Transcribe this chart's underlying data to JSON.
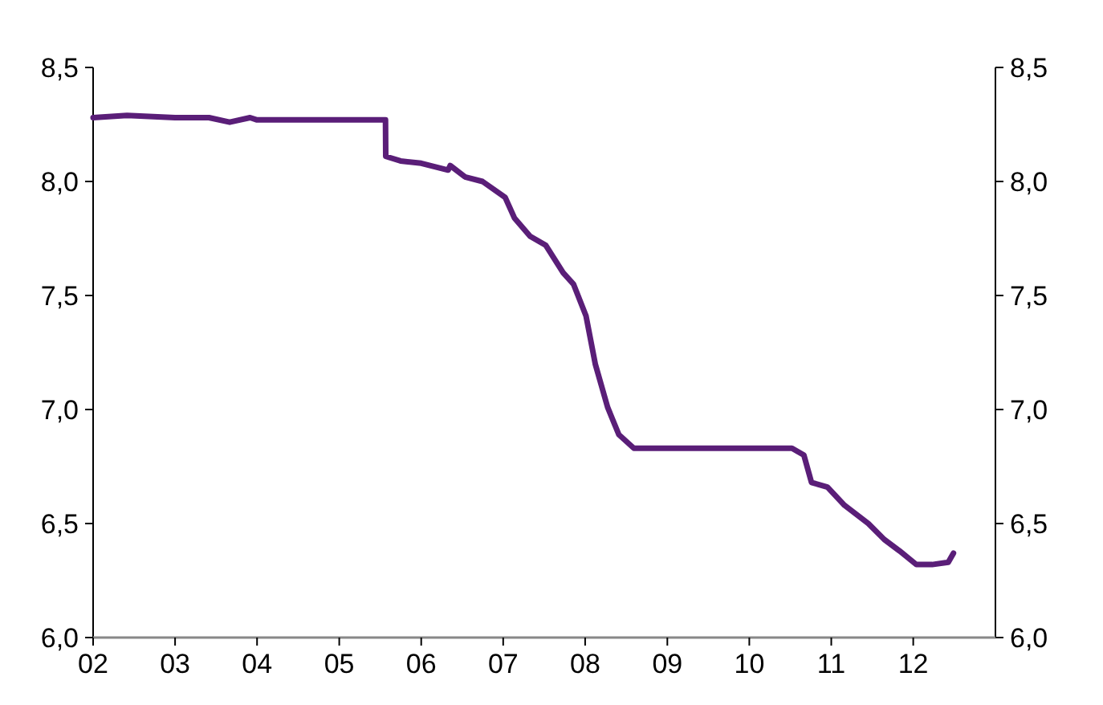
{
  "chart_data": {
    "type": "line",
    "x": [
      "2002-01-01",
      "2002-06-01",
      "2003-01-01",
      "2003-06-01",
      "2003-09-01",
      "2003-12-01",
      "2004-01-01",
      "2005-07-26",
      "2005-07-27",
      "2005-10-01",
      "2006-01-01",
      "2006-05-01",
      "2006-05-10",
      "2006-07-15",
      "2006-10-01",
      "2007-01-10",
      "2007-02-20",
      "2007-05-01",
      "2007-07-10",
      "2007-09-25",
      "2007-11-10",
      "2008-01-05",
      "2008-02-15",
      "2008-04-10",
      "2008-05-30",
      "2008-08-05",
      "2009-01-01",
      "2009-06-01",
      "2010-01-01",
      "2010-07-10",
      "2010-09-01",
      "2010-10-05",
      "2010-12-15",
      "2011-03-01",
      "2011-06-15",
      "2011-08-25",
      "2011-11-01",
      "2012-01-15",
      "2012-03-25",
      "2012-06-05",
      "2012-06-28"
    ],
    "series": [
      {
        "color": "#5a1e78",
        "values": [
          8.28,
          8.29,
          8.28,
          8.28,
          8.26,
          8.28,
          8.27,
          8.27,
          8.11,
          8.09,
          8.08,
          8.05,
          8.07,
          8.02,
          8.0,
          7.93,
          7.84,
          7.76,
          7.72,
          7.6,
          7.55,
          7.41,
          7.2,
          7.01,
          6.89,
          6.83,
          6.83,
          6.83,
          6.83,
          6.83,
          6.8,
          6.68,
          6.66,
          6.58,
          6.5,
          6.43,
          6.38,
          6.32,
          6.32,
          6.33,
          6.37
        ]
      }
    ],
    "xlim": [
      "2002-01-01",
      "2013-01-01"
    ],
    "xticks": [
      {
        "value": "2002-01-01",
        "label": "02"
      },
      {
        "value": "2003-01-01",
        "label": "03"
      },
      {
        "value": "2004-01-01",
        "label": "04"
      },
      {
        "value": "2005-01-01",
        "label": "05"
      },
      {
        "value": "2006-01-01",
        "label": "06"
      },
      {
        "value": "2007-01-01",
        "label": "07"
      },
      {
        "value": "2008-01-01",
        "label": "08"
      },
      {
        "value": "2009-01-01",
        "label": "09"
      },
      {
        "value": "2010-01-01",
        "label": "10"
      },
      {
        "value": "2011-01-01",
        "label": "11"
      },
      {
        "value": "2012-01-01",
        "label": "12"
      }
    ],
    "ylim": [
      6.0,
      8.5
    ],
    "yticks": [
      {
        "value": 6.0,
        "label": "6,0"
      },
      {
        "value": 6.5,
        "label": "6,5"
      },
      {
        "value": 7.0,
        "label": "7,0"
      },
      {
        "value": 7.5,
        "label": "7,5"
      },
      {
        "value": 8.0,
        "label": "8,0"
      },
      {
        "value": 8.5,
        "label": "8,5"
      }
    ],
    "y2lim": [
      6.0,
      8.5
    ],
    "y2ticks": [
      {
        "value": 6.0,
        "label": "6,0"
      },
      {
        "value": 6.5,
        "label": "6,5"
      },
      {
        "value": 7.0,
        "label": "7,0"
      },
      {
        "value": 7.5,
        "label": "7,5"
      },
      {
        "value": 8.0,
        "label": "8,0"
      },
      {
        "value": 8.5,
        "label": "8,5"
      }
    ],
    "grid": false,
    "marker": "none",
    "line_style": "solid"
  }
}
